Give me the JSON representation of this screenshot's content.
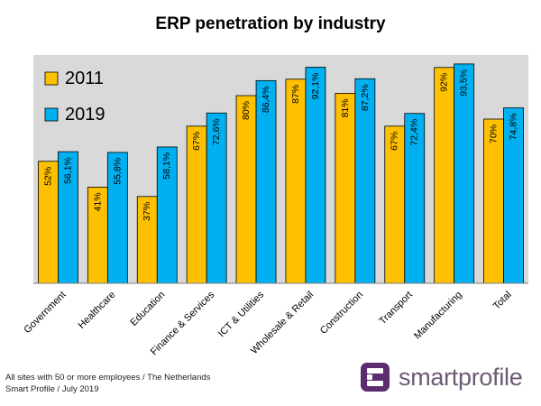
{
  "chart_data": {
    "type": "bar",
    "title": "ERP penetration by industry",
    "categories": [
      "Government",
      "Healthcare",
      "Education",
      "Finance & Services",
      "ICT & Utilities",
      "Wholesale & Retail",
      "Construction",
      "Transport",
      "Manufacturing",
      "Total"
    ],
    "series": [
      {
        "name": "2011",
        "color": "#FFC000",
        "values": [
          52,
          41,
          37,
          67,
          80,
          87,
          81,
          67,
          92,
          70
        ],
        "labels": [
          "52%",
          "41%",
          "37%",
          "67%",
          "80%",
          "87%",
          "81%",
          "67%",
          "92%",
          "70%"
        ]
      },
      {
        "name": "2019",
        "color": "#00B0F0",
        "values": [
          56.1,
          55.8,
          58.1,
          72.6,
          86.4,
          92.1,
          87.2,
          72.4,
          93.5,
          74.8
        ],
        "labels": [
          "56,1%",
          "55,8%",
          "58,1%",
          "72,6%",
          "86,4%",
          "92,1%",
          "87,2%",
          "72,4%",
          "93,5%",
          "74,8%"
        ]
      }
    ],
    "ylim": [
      0,
      100
    ],
    "legend_position": "top-left",
    "plot_background": "#D9D9D9",
    "grid": false
  },
  "footer": {
    "line1": "All sites with 50 or more employees  / The Netherlands",
    "line2": "Smart Profile / July 2019"
  },
  "brand": {
    "name": "smartprofile",
    "icon": "smartprofile-logo-icon",
    "color": "#6d5a73",
    "icon_color": "#5B2C6F"
  }
}
